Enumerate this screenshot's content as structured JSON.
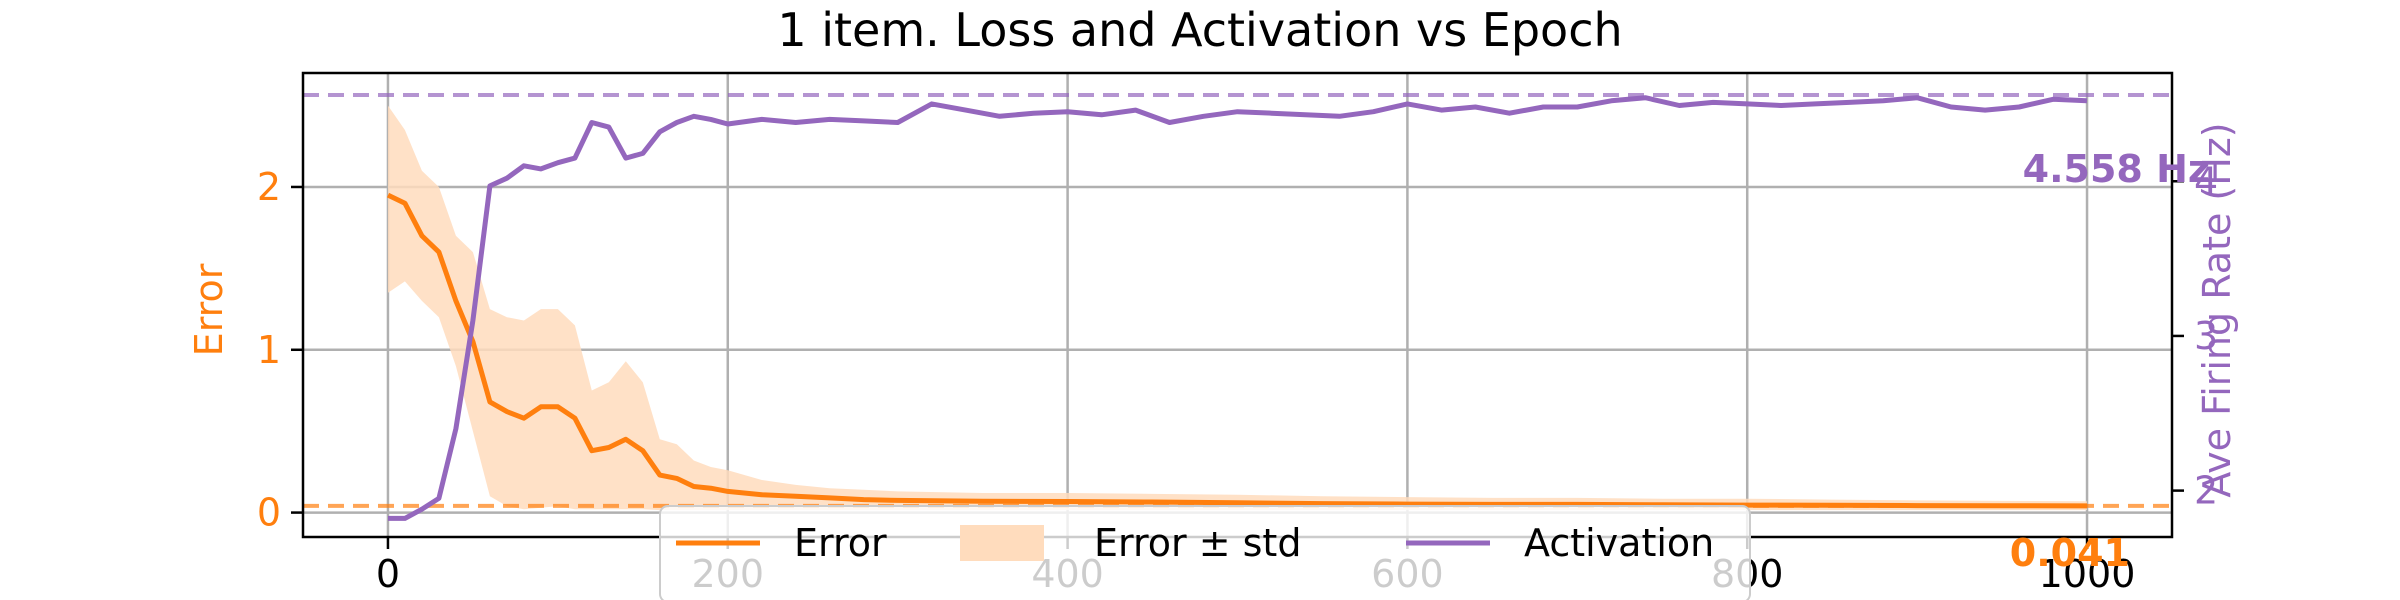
{
  "chart_data": {
    "type": "line",
    "title": "1 item. Loss and Activation vs Epoch",
    "xlabel": "",
    "ylabel_left": "Error",
    "ylabel_right": "Ave Firing Rate (Hz)",
    "xlim": [
      -50,
      1050
    ],
    "ylim_left": [
      -0.15,
      2.7
    ],
    "ylim_right": [
      1.7,
      4.7
    ],
    "x_ticks": [
      0,
      200,
      400,
      600,
      800,
      1000
    ],
    "y_ticks_left": [
      0,
      1,
      2
    ],
    "y_ticks_right": [
      2,
      3,
      4
    ],
    "grid": true,
    "legend_position": "bottom-center",
    "colors": {
      "error": "#ff7f0e",
      "error_band": "#ffdcbd",
      "activation": "#9467bd"
    },
    "series": [
      {
        "name": "Error",
        "axis": "left",
        "x": [
          0,
          10,
          20,
          30,
          40,
          50,
          60,
          70,
          80,
          90,
          100,
          110,
          120,
          130,
          140,
          150,
          160,
          170,
          180,
          190,
          200,
          220,
          240,
          260,
          280,
          300,
          350,
          400,
          450,
          500,
          550,
          600,
          650,
          700,
          750,
          800,
          850,
          900,
          950,
          1000
        ],
        "y": [
          1.95,
          1.9,
          1.7,
          1.6,
          1.3,
          1.05,
          0.68,
          0.62,
          0.58,
          0.65,
          0.65,
          0.58,
          0.38,
          0.4,
          0.45,
          0.38,
          0.23,
          0.21,
          0.16,
          0.15,
          0.13,
          0.11,
          0.1,
          0.09,
          0.08,
          0.075,
          0.07,
          0.068,
          0.065,
          0.06,
          0.055,
          0.052,
          0.05,
          0.05,
          0.048,
          0.046,
          0.045,
          0.043,
          0.042,
          0.041
        ]
      },
      {
        "name": "Error ± std",
        "axis": "left",
        "x": [
          0,
          10,
          20,
          30,
          40,
          50,
          60,
          70,
          80,
          90,
          100,
          110,
          120,
          130,
          140,
          150,
          160,
          170,
          180,
          190,
          200,
          220,
          240,
          260,
          280,
          300,
          350,
          400,
          450,
          500,
          550,
          600,
          650,
          700,
          750,
          800,
          850,
          900,
          950,
          1000
        ],
        "upper": [
          2.5,
          2.35,
          2.1,
          2.0,
          1.7,
          1.6,
          1.25,
          1.2,
          1.18,
          1.25,
          1.25,
          1.15,
          0.75,
          0.8,
          0.93,
          0.8,
          0.45,
          0.42,
          0.32,
          0.28,
          0.26,
          0.2,
          0.17,
          0.15,
          0.14,
          0.13,
          0.12,
          0.12,
          0.115,
          0.11,
          0.1,
          0.095,
          0.09,
          0.09,
          0.085,
          0.085,
          0.08,
          0.075,
          0.072,
          0.07
        ],
        "lower": [
          1.35,
          1.42,
          1.3,
          1.2,
          0.9,
          0.5,
          0.1,
          0.04,
          0.02,
          0.03,
          0.04,
          0.02,
          0.02,
          0.02,
          0.02,
          0.02,
          0.015,
          0.015,
          0.015,
          0.015,
          0.015,
          0.015,
          0.015,
          0.015,
          0.015,
          0.015,
          0.015,
          0.015,
          0.015,
          0.015,
          0.015,
          0.015,
          0.015,
          0.015,
          0.015,
          0.015,
          0.015,
          0.015,
          0.015,
          0.015
        ]
      },
      {
        "name": "Activation",
        "axis": "right",
        "x": [
          0,
          10,
          20,
          30,
          40,
          50,
          60,
          70,
          80,
          90,
          100,
          110,
          120,
          130,
          140,
          150,
          160,
          170,
          180,
          190,
          200,
          220,
          240,
          260,
          280,
          300,
          320,
          340,
          360,
          380,
          400,
          420,
          440,
          460,
          480,
          500,
          520,
          540,
          560,
          580,
          600,
          620,
          640,
          660,
          680,
          700,
          720,
          740,
          760,
          780,
          800,
          820,
          840,
          860,
          880,
          900,
          920,
          940,
          960,
          980,
          1000
        ],
        "y": [
          1.82,
          1.82,
          1.88,
          1.95,
          2.4,
          3.1,
          3.97,
          4.02,
          4.1,
          4.08,
          4.12,
          4.15,
          4.38,
          4.35,
          4.15,
          4.18,
          4.32,
          4.38,
          4.42,
          4.4,
          4.37,
          4.4,
          4.38,
          4.4,
          4.39,
          4.38,
          4.5,
          4.46,
          4.42,
          4.44,
          4.45,
          4.43,
          4.46,
          4.38,
          4.42,
          4.45,
          4.44,
          4.43,
          4.42,
          4.45,
          4.5,
          4.46,
          4.48,
          4.44,
          4.48,
          4.48,
          4.52,
          4.54,
          4.49,
          4.51,
          4.5,
          4.49,
          4.5,
          4.51,
          4.52,
          4.54,
          4.48,
          4.46,
          4.48,
          4.53,
          4.52
        ]
      }
    ],
    "reference_lines": [
      {
        "axis": "left",
        "value": 0.041,
        "label": "0.041"
      },
      {
        "axis": "right",
        "value": 4.558,
        "label": "4.558 Hz"
      }
    ]
  }
}
